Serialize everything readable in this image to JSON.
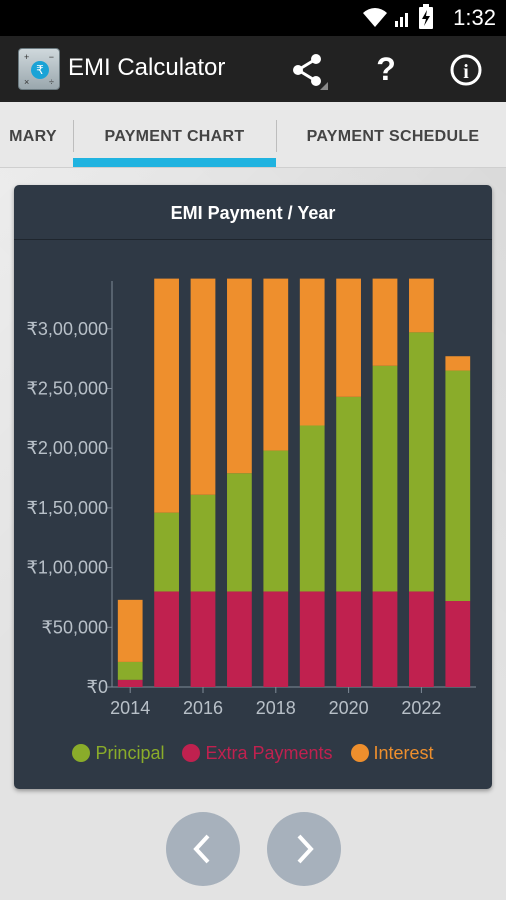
{
  "status_bar": {
    "time": "1:32",
    "icons": [
      "wifi-icon",
      "signal-icon",
      "battery-charging-icon"
    ]
  },
  "action_bar": {
    "title": "EMI Calculator",
    "actions": [
      "share-icon",
      "help-icon",
      "info-icon"
    ],
    "help_glyph": "?",
    "info_glyph": "i"
  },
  "tabs": [
    {
      "label": "MARY",
      "selected": false
    },
    {
      "label": "PAYMENT CHART",
      "selected": true
    },
    {
      "label": "PAYMENT SCHEDULE",
      "selected": false
    }
  ],
  "colors": {
    "accent": "#20b3e0",
    "principal": "#8aac2a",
    "extra_payments": "#c0214f",
    "interest": "#ee8f2d",
    "card_bg": "#2f3945"
  },
  "chart_data": {
    "type": "bar",
    "stacked": true,
    "title": "EMI Payment / Year",
    "years": [
      2014,
      2015,
      2016,
      2017,
      2018,
      2019,
      2020,
      2021,
      2022,
      2023
    ],
    "x_tick_labels": [
      "2014",
      "2016",
      "2018",
      "2020",
      "2022"
    ],
    "y_tick_labels": [
      "₹0",
      "₹50,000",
      "₹1,00,000",
      "₹1,50,000",
      "₹2,00,000",
      "₹2,50,000",
      "₹3,00,000"
    ],
    "ylim": [
      0,
      340000
    ],
    "series": [
      {
        "name": "Extra Payments",
        "color": "#c0214f",
        "values": [
          6000,
          80000,
          80000,
          80000,
          80000,
          80000,
          80000,
          80000,
          80000,
          72000
        ]
      },
      {
        "name": "Principal",
        "color": "#8aac2a",
        "values": [
          15000,
          66000,
          81000,
          99000,
          118000,
          139000,
          163000,
          189000,
          217000,
          193000
        ]
      },
      {
        "name": "Interest",
        "color": "#ee8f2d",
        "values": [
          52000,
          196000,
          181000,
          163000,
          144000,
          123000,
          99000,
          73000,
          45000,
          12000
        ]
      }
    ],
    "legend": {
      "placement": "bottom",
      "entries": [
        {
          "name": "Principal",
          "color": "#8aac2a"
        },
        {
          "name": "Extra Payments",
          "color": "#c0214f"
        },
        {
          "name": "Interest",
          "color": "#ee8f2d"
        }
      ]
    },
    "grid": false
  },
  "navigation": {
    "prev_icon": "chevron-left-icon",
    "next_icon": "chevron-right-icon"
  }
}
